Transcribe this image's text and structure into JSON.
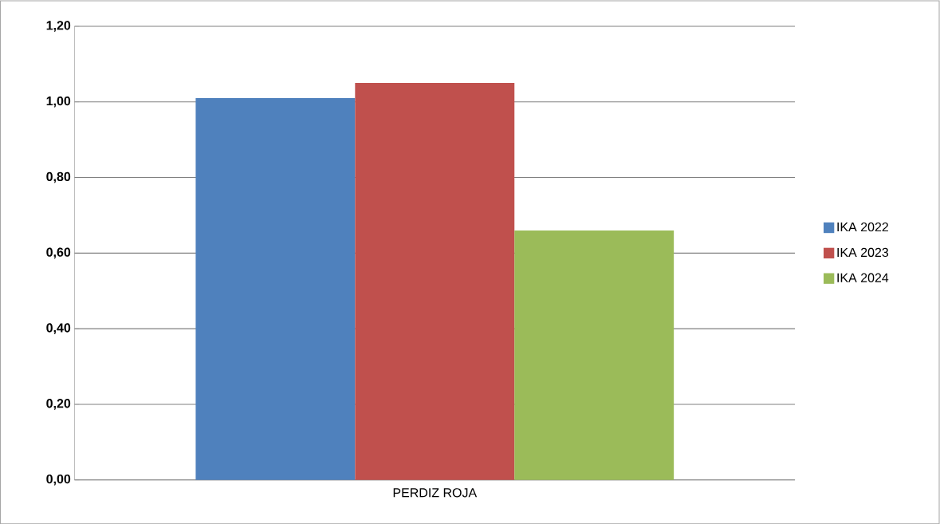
{
  "chart_data": {
    "type": "bar",
    "categories": [
      "PERDIZ ROJA"
    ],
    "series": [
      {
        "name": "IKA 2022",
        "color": "#4f81bd",
        "values": [
          1.01
        ]
      },
      {
        "name": "IKA 2023",
        "color": "#c0504d",
        "values": [
          1.05
        ]
      },
      {
        "name": "IKA 2024",
        "color": "#9bbb59",
        "values": [
          0.66
        ]
      }
    ],
    "ylim": [
      0,
      1.2
    ],
    "yticks": [
      {
        "value": 0,
        "label": "0,00"
      },
      {
        "value": 0.2,
        "label": "0,20"
      },
      {
        "value": 0.4,
        "label": "0,40"
      },
      {
        "value": 0.6,
        "label": "0,60"
      },
      {
        "value": 0.8,
        "label": "0,80"
      },
      {
        "value": 1.0,
        "label": "1,00"
      },
      {
        "value": 1.2,
        "label": "1,20"
      }
    ],
    "grid": "y",
    "legend": "right"
  }
}
